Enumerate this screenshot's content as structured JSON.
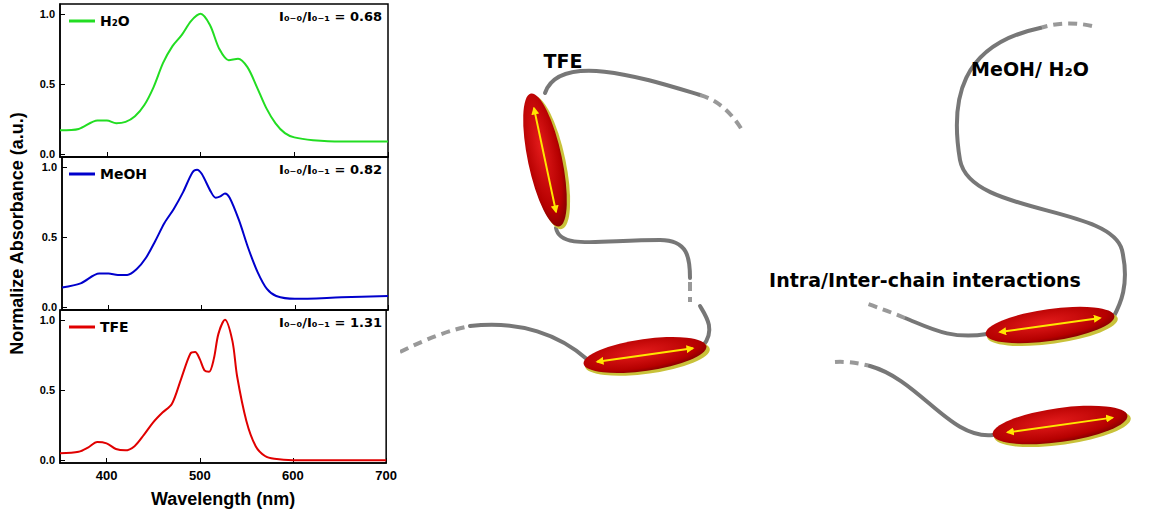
{
  "chart_data": {
    "type": "line",
    "x_label": "Wavelength (nm)",
    "y_label": "Normalize Absorbance (a.u.)",
    "xlim": [
      350,
      700
    ],
    "xticks": [
      400,
      500,
      600,
      700
    ],
    "ylim": [
      -0.02,
      1.07
    ],
    "yticks": [
      {
        "value": 0,
        "label": "0.0"
      },
      {
        "value": 0.5,
        "label": "0.5"
      },
      {
        "value": 1,
        "label": "1.0"
      }
    ],
    "grid": false,
    "series": [
      {
        "name": "H₂O",
        "color": "#22dd22",
        "annotation": "I₀₋₀/I₀₋₁ = 0.68",
        "x": [
          350,
          370,
          390,
          400,
          410,
          420,
          430,
          440,
          450,
          460,
          470,
          480,
          490,
          500,
          510,
          520,
          530,
          540,
          550,
          560,
          570,
          580,
          590,
          600,
          620,
          650,
          700
        ],
        "values": [
          0.17,
          0.18,
          0.24,
          0.24,
          0.22,
          0.23,
          0.27,
          0.35,
          0.48,
          0.65,
          0.77,
          0.85,
          0.95,
          1.0,
          0.92,
          0.75,
          0.67,
          0.68,
          0.62,
          0.48,
          0.33,
          0.22,
          0.15,
          0.12,
          0.1,
          0.09,
          0.09
        ]
      },
      {
        "name": "MeOH",
        "color": "#0000cc",
        "annotation": "I₀₋₀/I₀₋₁ = 0.82",
        "x": [
          350,
          370,
          390,
          400,
          410,
          420,
          430,
          440,
          450,
          460,
          470,
          480,
          490,
          495,
          500,
          510,
          515,
          520,
          525,
          530,
          540,
          550,
          560,
          570,
          580,
          600,
          650,
          700
        ],
        "values": [
          0.14,
          0.17,
          0.24,
          0.24,
          0.23,
          0.23,
          0.27,
          0.35,
          0.47,
          0.6,
          0.7,
          0.82,
          0.96,
          0.98,
          0.95,
          0.82,
          0.78,
          0.79,
          0.81,
          0.78,
          0.62,
          0.42,
          0.25,
          0.13,
          0.08,
          0.06,
          0.07,
          0.08
        ]
      },
      {
        "name": "TFE",
        "color": "#e00000",
        "annotation": "I₀₋₀/I₀₋₁ = 1.31",
        "x": [
          350,
          370,
          380,
          390,
          400,
          410,
          420,
          430,
          440,
          450,
          460,
          470,
          480,
          490,
          495,
          500,
          505,
          510,
          515,
          520,
          527,
          535,
          540,
          550,
          560,
          570,
          580,
          600,
          650,
          700
        ],
        "values": [
          0.05,
          0.06,
          0.09,
          0.13,
          0.12,
          0.08,
          0.07,
          0.1,
          0.18,
          0.27,
          0.34,
          0.4,
          0.58,
          0.76,
          0.77,
          0.72,
          0.64,
          0.63,
          0.72,
          0.9,
          1.0,
          0.85,
          0.6,
          0.28,
          0.1,
          0.03,
          0.01,
          0.0,
          0.0,
          0.0
        ]
      }
    ]
  },
  "diagram": {
    "left_title": "TFE",
    "right_title": "MeOH/ H₂O",
    "center_label": "Intra/Inter-chain interactions"
  }
}
